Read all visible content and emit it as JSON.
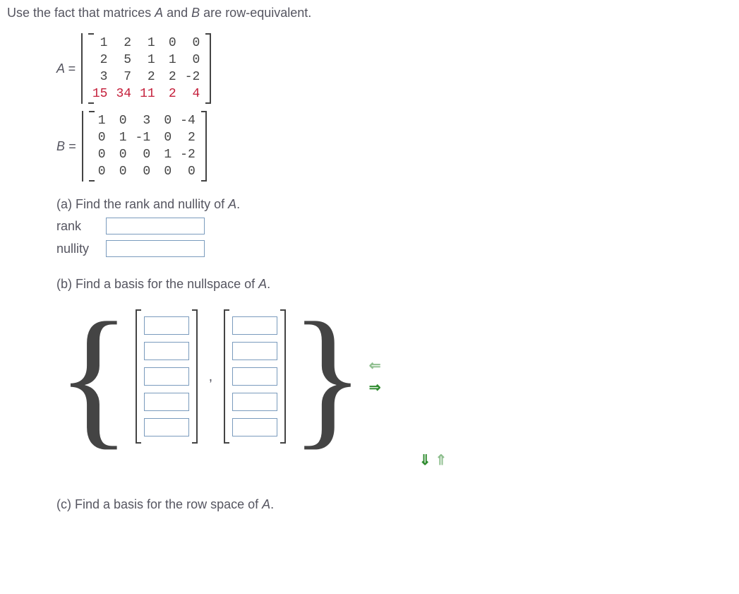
{
  "intro": {
    "prefix": "Use the fact that matrices ",
    "a": "A",
    "mid": " and ",
    "b": "B",
    "suffix": " are row-equivalent."
  },
  "matrixA": {
    "label": "A =",
    "rows": [
      [
        "1",
        "2",
        "1",
        "0",
        "0"
      ],
      [
        "2",
        "5",
        "1",
        "1",
        "0"
      ],
      [
        "3",
        "7",
        "2",
        "2",
        "-2"
      ],
      [
        "15",
        "34",
        "11",
        "2",
        "4"
      ]
    ],
    "highlight_row_index": 3
  },
  "matrixB": {
    "label": "B =",
    "rows": [
      [
        "1",
        "0",
        "3",
        "0",
        "-4"
      ],
      [
        "0",
        "1",
        "-1",
        "0",
        "2"
      ],
      [
        "0",
        "0",
        "0",
        "1",
        "-2"
      ],
      [
        "0",
        "0",
        "0",
        "0",
        "0"
      ]
    ]
  },
  "partA": {
    "prompt_prefix": "(a) Find the rank and nullity of ",
    "prompt_var": "A",
    "prompt_suffix": ".",
    "rank_label": "rank",
    "nullity_label": "nullity",
    "rank_value": "",
    "nullity_value": ""
  },
  "partB": {
    "prompt_prefix": "(b) Find a basis for the nullspace of ",
    "prompt_var": "A",
    "prompt_suffix": ".",
    "num_vectors": 2,
    "vector_length": 5
  },
  "partC": {
    "prompt_prefix": "(c) Find a basis for the row space of ",
    "prompt_var": "A",
    "prompt_suffix": "."
  }
}
